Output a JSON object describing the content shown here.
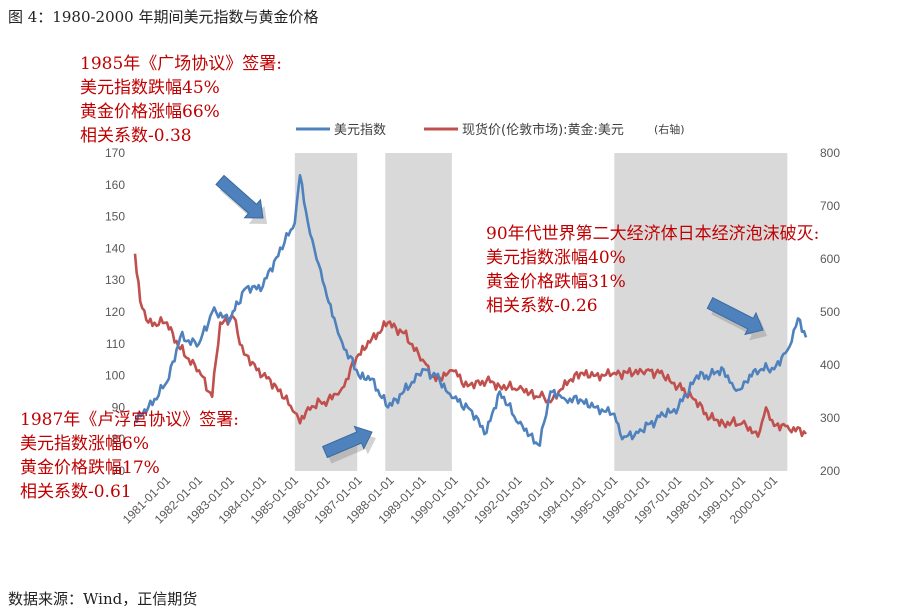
{
  "figure_title": "图 4：1980-2000 年期间美元指数与黄金价格",
  "source": "数据来源：Wind，正信期货",
  "annotations": {
    "plaza": [
      "1985年《广场协议》签署:",
      "美元指数跌幅45%",
      "黄金价格涨幅66%",
      "相关系数-0.38"
    ],
    "louvre": [
      "1987年《卢浮宫协议》签署:",
      "美元指数涨幅6%",
      "黄金价格跌幅17%",
      "相关系数-0.61"
    ],
    "japan": [
      "90年代世界第二大经济体日本经济泡沫破灭:",
      "美元指数涨幅40%",
      "黄金价格跌幅31%",
      "相关系数-0.26"
    ]
  },
  "colors": {
    "usd": "#4f81bd",
    "gold": "#c0504d",
    "shade": "#d9d9d9",
    "arrow": "#4f81bd"
  },
  "chart_data": {
    "type": "line",
    "legend_position": "top",
    "grid": false,
    "y_left": {
      "range": [
        70,
        170
      ],
      "ticks": [
        70,
        80,
        90,
        100,
        110,
        120,
        130,
        140,
        150,
        160,
        170
      ]
    },
    "y_right": {
      "label": "(右轴)",
      "range": [
        200,
        800
      ],
      "ticks": [
        200,
        300,
        400,
        500,
        600,
        700,
        800
      ]
    },
    "x_ticks": [
      "1981-01-01",
      "1982-01-01",
      "1983-01-01",
      "1984-01-01",
      "1985-01-01",
      "1986-01-01",
      "1987-01-01",
      "1988-01-01",
      "1989-01-01",
      "1990-01-01",
      "1991-01-01",
      "1992-01-01",
      "1993-01-01",
      "1994-01-01",
      "1995-01-01",
      "1996-01-01",
      "1997-01-01",
      "1998-01-01",
      "1999-01-01",
      "2000-01-01"
    ],
    "x_range": [
      "1980-01-01",
      "2000-12-31"
    ],
    "shaded_periods": [
      {
        "start": "1985-01-01",
        "end": "1986-12-15"
      },
      {
        "start": "1987-11-01",
        "end": "1989-12-01"
      },
      {
        "start": "1995-01-01",
        "end": "2000-06-01"
      }
    ],
    "series": [
      {
        "name": "美元指数",
        "axis": "left",
        "x": [
          "1980-01-01",
          "1980-06-01",
          "1981-01-01",
          "1981-06-01",
          "1982-01-01",
          "1982-06-01",
          "1983-01-01",
          "1983-06-01",
          "1984-01-01",
          "1984-06-01",
          "1985-01-01",
          "1985-03-01",
          "1985-06-01",
          "1985-10-01",
          "1986-01-01",
          "1986-06-01",
          "1987-01-01",
          "1987-06-01",
          "1987-12-01",
          "1988-06-01",
          "1988-09-01",
          "1989-01-01",
          "1989-06-01",
          "1989-12-01",
          "1990-06-01",
          "1991-01-01",
          "1991-06-01",
          "1992-01-01",
          "1992-09-01",
          "1993-01-01",
          "1993-06-01",
          "1994-01-01",
          "1994-06-01",
          "1995-01-01",
          "1995-04-01",
          "1995-10-01",
          "1996-06-01",
          "1997-01-01",
          "1997-08-01",
          "1998-01-01",
          "1998-06-01",
          "1998-10-01",
          "1999-01-01",
          "1999-06-01",
          "2000-01-01",
          "2000-06-01",
          "2000-10-01",
          "2000-12-31"
        ],
        "values": [
          86,
          90,
          98,
          112,
          110,
          120,
          118,
          127,
          128,
          137,
          148,
          163,
          148,
          135,
          125,
          112,
          100,
          99,
          90,
          95,
          98,
          102,
          100,
          93,
          90,
          82,
          95,
          85,
          78,
          95,
          93,
          92,
          90,
          88,
          80,
          82,
          87,
          90,
          100,
          100,
          102,
          96,
          96,
          102,
          102,
          108,
          118,
          112
        ]
      },
      {
        "name": "现货价(伦敦市场):黄金:美元",
        "axis": "right",
        "x": [
          "1980-01-01",
          "1980-03-01",
          "1980-06-01",
          "1981-01-01",
          "1981-06-01",
          "1982-01-01",
          "1982-06-01",
          "1982-09-01",
          "1983-02-01",
          "1983-06-01",
          "1984-01-01",
          "1984-06-01",
          "1985-01-01",
          "1985-03-01",
          "1985-06-01",
          "1985-12-01",
          "1986-06-01",
          "1987-01-01",
          "1987-06-01",
          "1987-12-01",
          "1988-06-01",
          "1989-01-01",
          "1989-06-01",
          "1989-12-01",
          "1990-06-01",
          "1991-01-01",
          "1991-06-01",
          "1992-01-01",
          "1992-09-01",
          "1993-01-01",
          "1993-08-01",
          "1994-01-01",
          "1994-06-01",
          "1995-01-01",
          "1995-06-01",
          "1996-01-01",
          "1996-06-01",
          "1997-01-01",
          "1997-06-01",
          "1998-01-01",
          "1998-06-01",
          "1999-01-01",
          "1999-07-01",
          "1999-10-01",
          "2000-01-01",
          "2000-06-01",
          "2000-12-31"
        ],
        "values": [
          610,
          520,
          480,
          480,
          430,
          390,
          340,
          480,
          490,
          420,
          380,
          360,
          310,
          290,
          320,
          330,
          350,
          420,
          450,
          480,
          460,
          410,
          370,
          390,
          360,
          370,
          360,
          355,
          340,
          330,
          370,
          385,
          380,
          385,
          385,
          390,
          385,
          360,
          340,
          300,
          290,
          290,
          265,
          320,
          285,
          285,
          270
        ]
      }
    ]
  }
}
